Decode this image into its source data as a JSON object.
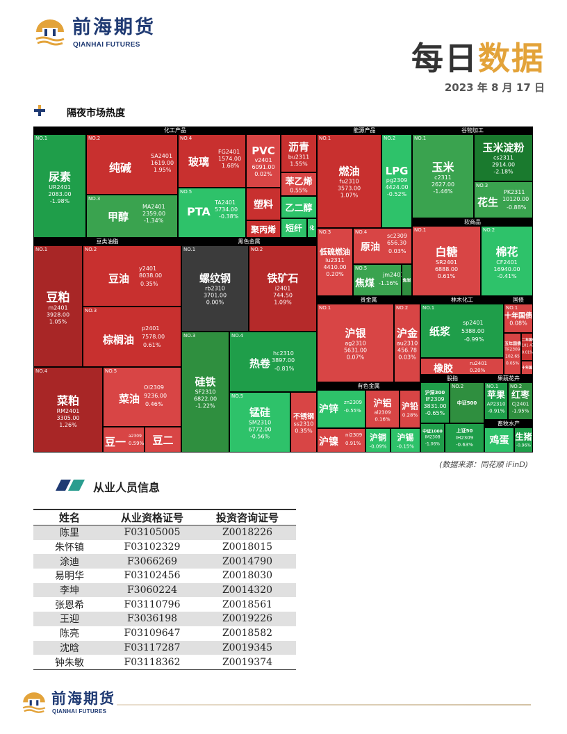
{
  "header": {
    "logo_cn": "前海期货",
    "logo_en": "QIANHAI FUTURES",
    "title_part1": "每日",
    "title_part2": "数据",
    "date": "2023 年 8 月 17 日"
  },
  "section1": {
    "title": "隔夜市场热度",
    "source": "(数据来源：同花顺 iFinD)"
  },
  "treemap": {
    "groups": {
      "chem": "化工产品",
      "energy": "能源产品",
      "grain": "谷物加工",
      "soft": "软商品",
      "oils": "豆类油脂",
      "ferrous": "黑色金属",
      "precious": "贵金属",
      "forest": "林木化工",
      "bond": "国债",
      "nonferrous": "有色金属",
      "index": "股指",
      "fruit": "果蔬花卉",
      "livestock": "畜牧水产"
    },
    "tiles": {
      "niaosu": {
        "no": "NO.1",
        "name": "尿素",
        "code": "UR2401",
        "price": "2083.00",
        "chg": "-1.98%"
      },
      "chunjian": {
        "no": "NO.2",
        "name": "纯碱",
        "code": "SA2401",
        "price": "1619.00",
        "chg": "1.95%"
      },
      "jiachun": {
        "no": "NO.3",
        "name": "甲醇",
        "code": "MA2401",
        "price": "2359.00",
        "chg": "-1.34%"
      },
      "boli": {
        "no": "NO.4",
        "name": "玻璃",
        "code": "FG2401",
        "price": "1574.00",
        "chg": "1.68%"
      },
      "pvc": {
        "name": "PVC",
        "code": "v2401",
        "price": "6091.00",
        "chg": "0.02%"
      },
      "liqing": {
        "name": "沥青",
        "code": "bu2311",
        "chg": "1.55%"
      },
      "benyixi": {
        "name": "苯乙烯",
        "chg": "0.55%"
      },
      "pta": {
        "no": "NO.5",
        "name": "PTA",
        "code": "TA2401",
        "price": "5734.00",
        "chg": "-0.38%"
      },
      "suliao": {
        "name": "塑料"
      },
      "yierchun": {
        "name": "乙二醇"
      },
      "jubingxi": {
        "name": "聚丙烯"
      },
      "duanxian": {
        "name": "短纤"
      },
      "shao": {
        "name": "化"
      },
      "ranyou": {
        "no": "NO.1",
        "name": "燃油",
        "code": "fu2310",
        "price": "3573.00",
        "chg": "1.07%"
      },
      "lpg": {
        "no": "NO.2",
        "name": "LPG",
        "code": "pg2309",
        "price": "4424.00",
        "chg": "-0.52%"
      },
      "dilIu": {
        "no": "NO.3",
        "name": "低硫燃油",
        "code": "lu2311",
        "price": "4410.00",
        "chg": "0.20%"
      },
      "yuanyou": {
        "no": "NO.4",
        "name": "原油",
        "code": "sc2309",
        "price": "656.30",
        "chg": "0.03%"
      },
      "jiaomei": {
        "no": "NO.5",
        "name": "焦煤",
        "code": "jm2401",
        "chg": "-1.16%"
      },
      "jiaotan": {
        "name": "焦炭"
      },
      "yumi": {
        "no": "NO.1",
        "name": "玉米",
        "code": "c2311",
        "price": "2627.00",
        "chg": "-1.46%"
      },
      "dianfen": {
        "name": "玉米淀粉",
        "code": "cs2311",
        "price": "2914.00",
        "chg": "-2.18%"
      },
      "huasheng": {
        "no": "NO.3",
        "name": "花生",
        "code": "PK2311",
        "price": "10120.00",
        "chg": "-0.88%"
      },
      "baitang": {
        "no": "NO.1",
        "name": "白糖",
        "code": "SR2401",
        "price": "6888.00",
        "chg": "0.61%"
      },
      "mianhua": {
        "no": "NO.2",
        "name": "棉花",
        "code": "CF2401",
        "price": "16940.00",
        "chg": "-0.41%"
      },
      "doupo": {
        "no": "NO.1",
        "name": "豆粕",
        "code": "m2401",
        "price": "3928.00",
        "chg": "1.05%"
      },
      "douyou": {
        "no": "NO.2",
        "name": "豆油",
        "code": "y2401",
        "price": "8038.00",
        "chg": "0.35%"
      },
      "zonglv": {
        "no": "NO.3",
        "name": "棕榈油",
        "code": "p2401",
        "price": "7578.00",
        "chg": "0.61%"
      },
      "caipo": {
        "no": "NO.4",
        "name": "菜粕",
        "code": "RM2401",
        "price": "3305.00",
        "chg": "1.26%"
      },
      "caiyou": {
        "no": "NO.5",
        "name": "菜油",
        "code": "OI2309",
        "price": "9236.00",
        "chg": "0.46%"
      },
      "douyi": {
        "name": "豆一",
        "code": "a2309",
        "chg": "0.59%"
      },
      "douer": {
        "name": "豆二"
      },
      "luowen": {
        "no": "NO.1",
        "name": "螺纹钢",
        "code": "rb2310",
        "price": "3701.00",
        "chg": "0.00%"
      },
      "tiekuang": {
        "no": "NO.2",
        "name": "铁矿石",
        "code": "i2401",
        "price": "744.50",
        "chg": "1.09%"
      },
      "guitie": {
        "no": "NO.3",
        "name": "硅铁",
        "code": "SF2310",
        "price": "6822.00",
        "chg": "-1.22%"
      },
      "rejuan": {
        "no": "NO.4",
        "name": "热卷",
        "code": "hc2310",
        "price": "3897.00",
        "chg": "-0.81%"
      },
      "menggui": {
        "no": "NO.5",
        "name": "锰硅",
        "code": "SM2310",
        "price": "6772.00",
        "chg": "-0.56%"
      },
      "buxiu": {
        "name": "不锈钢",
        "code": "ss2310",
        "chg": "0.35%"
      },
      "huyin": {
        "no": "NO.1",
        "name": "沪银",
        "code": "ag2310",
        "price": "5631.00",
        "chg": "0.07%"
      },
      "hujin": {
        "no": "NO.2",
        "name": "沪金",
        "code": "au2310",
        "price": "456.78",
        "chg": "0.03%"
      },
      "zhijiang": {
        "no": "NO.1",
        "name": "纸浆",
        "code": "sp2401",
        "price": "5388.00",
        "chg": "-0.99%"
      },
      "xiangjiao": {
        "name": "橡胶",
        "code": "ru2401",
        "chg": "0.20%"
      },
      "shinian": {
        "no": "NO.1",
        "name": "十年国债",
        "chg": "0.08%"
      },
      "wunian": {
        "name": "五年国债",
        "code": "TF2309",
        "price": "102.65",
        "chg": "0.05%"
      },
      "ernian": {
        "name": "二年国债",
        "price": "101.47",
        "chg": "0.01%"
      },
      "shiniansmall": {
        "name": "十年国"
      },
      "huxin": {
        "name": "沪锌",
        "code": "zn2309",
        "chg": "-0.55%"
      },
      "hulv": {
        "name": "沪铝",
        "code": "al2309",
        "chg": "0.16%"
      },
      "huqian": {
        "name": "沪铅",
        "chg": "0.28%"
      },
      "hunie": {
        "name": "沪镍",
        "code": "ni2309",
        "chg": "0.91%"
      },
      "hutong": {
        "name": "沪铜",
        "chg": "-0.09%"
      },
      "huxi": {
        "name": "沪锡",
        "chg": "-0.15%"
      },
      "hushen300": {
        "name": "沪深300",
        "code": "IF2309",
        "price": "3831.00",
        "chg": "-0.65%"
      },
      "zhongzheng500": {
        "no": "NO.2",
        "name": "中证500"
      },
      "zhongzheng1000": {
        "name": "中证1000",
        "code": "IM2308",
        "chg": "-1.06%"
      },
      "shangzheng50": {
        "name": "上证50",
        "code": "IH2309",
        "chg": "-0.63%"
      },
      "pingguo": {
        "no": "NO.1",
        "name": "苹果",
        "code": "AP2310",
        "chg": "-0.91%"
      },
      "hongzao": {
        "no": "NO.2",
        "name": "红枣",
        "code": "CJ2401",
        "chg": "-1.95%"
      },
      "jidan": {
        "name": "鸡蛋"
      },
      "shengzhu": {
        "name": "生猪",
        "chg": "-0.96%"
      }
    }
  },
  "section2": {
    "title": "从业人员信息",
    "headers": [
      "姓名",
      "从业资格证号",
      "投资咨询证号"
    ],
    "rows": [
      [
        "陈里",
        "F03105005",
        "Z0018226"
      ],
      [
        "朱怀镇",
        "F03102329",
        "Z0018015"
      ],
      [
        "涂迪",
        "F3066269",
        "Z0014790"
      ],
      [
        "易明华",
        "F03102456",
        "Z0018030"
      ],
      [
        "李坤",
        "F3060224",
        "Z0014320"
      ],
      [
        "张恩希",
        "F03110796",
        "Z0018561"
      ],
      [
        "王迎",
        "F3036198",
        "Z0019226"
      ],
      [
        "陈亮",
        "F03109647",
        "Z0018582"
      ],
      [
        "沈晗",
        "F03117287",
        "Z0019345"
      ],
      [
        "钟朱敏",
        "F03118362",
        "Z0019374"
      ]
    ]
  },
  "footer": {
    "logo_cn": "前海期货",
    "logo_en": "QIANHAI FUTURES"
  },
  "colors": {
    "brand_blue": "#1f3a73",
    "brand_gold": "#e3a33a",
    "up_red": "#c8302f",
    "down_green": "#1f9e4a"
  }
}
